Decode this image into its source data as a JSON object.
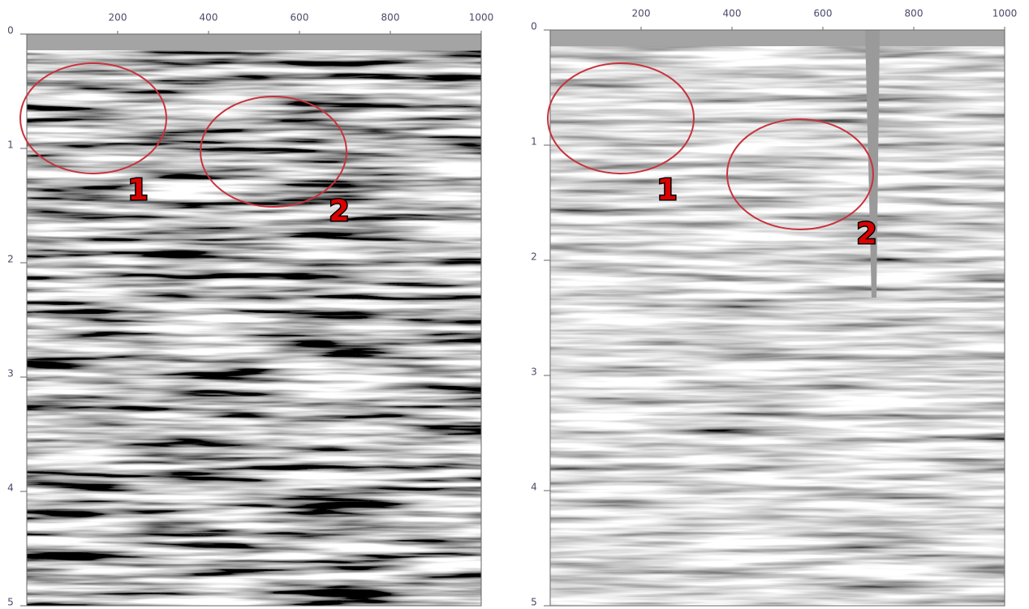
{
  "panels": [
    {
      "xlim": [
        0,
        1000
      ],
      "ylim": [
        0,
        5
      ],
      "xticks": [
        200,
        400,
        600,
        800,
        1000
      ],
      "yticks": [
        0,
        1,
        2,
        3,
        4,
        5
      ],
      "annotations": [
        "1",
        "2"
      ]
    },
    {
      "xlim": [
        0,
        1000
      ],
      "ylim": [
        0,
        5
      ],
      "xticks": [
        200,
        400,
        600,
        800,
        1000
      ],
      "yticks": [
        0,
        1,
        2,
        3,
        4,
        5
      ],
      "annotations": [
        "1",
        "2"
      ]
    }
  ]
}
